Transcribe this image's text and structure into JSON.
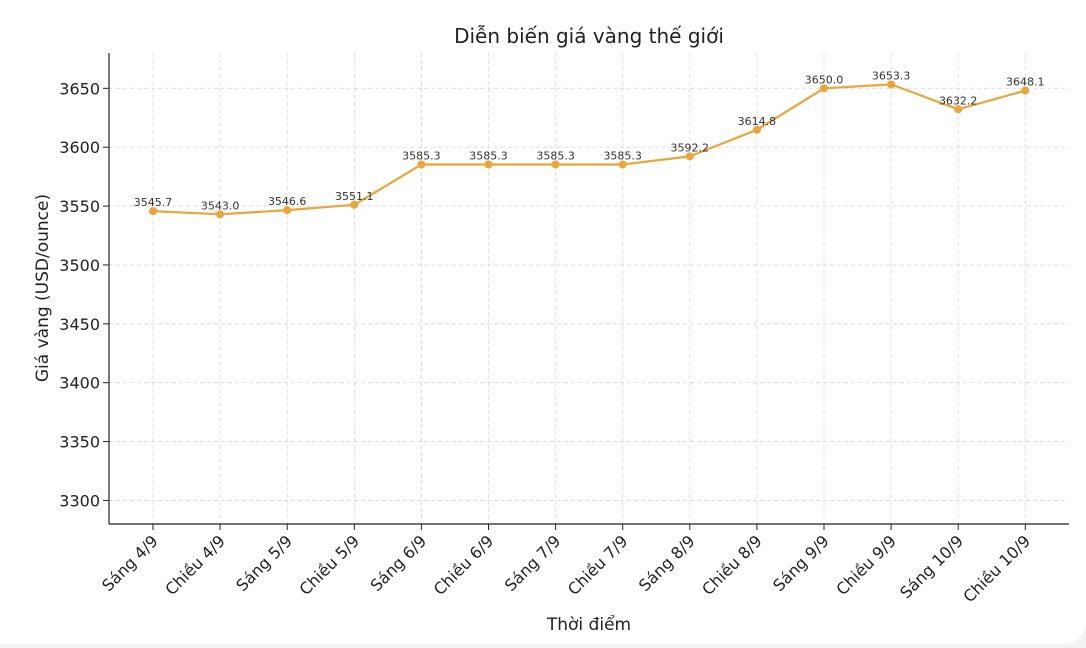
{
  "chart_data": {
    "type": "line",
    "title": "Diễn biến giá vàng thế giới",
    "xlabel": "Thời điểm",
    "ylabel": "Giá vàng (USD/ounce)",
    "categories": [
      "Sáng 4/9",
      "Chiều 4/9",
      "Sáng 5/9",
      "Chiều 5/9",
      "Sáng 6/9",
      "Chiều 6/9",
      "Sáng 7/9",
      "Chiều 7/9",
      "Sáng 8/9",
      "Chiều 8/9",
      "Sáng 9/9",
      "Chiều 9/9",
      "Sáng 10/9",
      "Chiều 10/9"
    ],
    "values": [
      3545.7,
      3543.0,
      3546.6,
      3551.1,
      3585.3,
      3585.3,
      3585.3,
      3585.3,
      3592.2,
      3614.8,
      3650.0,
      3653.3,
      3632.2,
      3648.1
    ],
    "value_labels": [
      "3545.7",
      "3543.0",
      "3546.6",
      "3551.1",
      "3585.3",
      "3585.3",
      "3585.3",
      "3585.3",
      "3592.2",
      "3614.8",
      "3650.0",
      "3653.3",
      "3632.2",
      "3648.1"
    ],
    "yticks": [
      "3300",
      "3350",
      "3400",
      "3450",
      "3500",
      "3550",
      "3600",
      "3650"
    ],
    "ylim": [
      3280,
      3680
    ],
    "grid": true,
    "line_color": "#eaa53b"
  }
}
